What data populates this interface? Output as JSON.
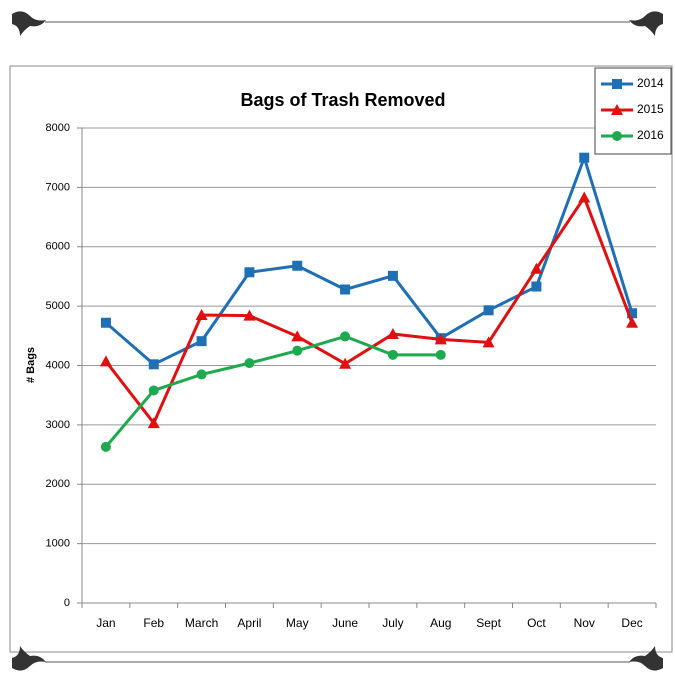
{
  "chart_data": {
    "type": "line",
    "title": "Bags of Trash Removed",
    "y_label": "# Bags",
    "categories": [
      "Jan",
      "Feb",
      "March",
      "April",
      "May",
      "June",
      "July",
      "Aug",
      "Sept",
      "Oct",
      "Nov",
      "Dec"
    ],
    "series": [
      {
        "name": "2014",
        "color": "#1f6fb4",
        "marker": "square",
        "values": [
          4720,
          4020,
          4410,
          5570,
          5680,
          5280,
          5510,
          4460,
          4930,
          5330,
          7500,
          4880
        ]
      },
      {
        "name": "2015",
        "color": "#e01010",
        "marker": "triangle",
        "values": [
          4070,
          3030,
          4850,
          4840,
          4490,
          4030,
          4530,
          4440,
          4390,
          5630,
          6830,
          4720
        ]
      },
      {
        "name": "2016",
        "color": "#1daa4e",
        "marker": "circle",
        "values": [
          2630,
          3580,
          3850,
          4040,
          4250,
          4490,
          4180,
          4180,
          null,
          null,
          null,
          null
        ]
      }
    ],
    "ylim": [
      0,
      8000
    ],
    "yticks": [
      0,
      1000,
      2000,
      3000,
      4000,
      5000,
      6000,
      7000,
      8000
    ],
    "grid": true,
    "legend": "top-right"
  }
}
